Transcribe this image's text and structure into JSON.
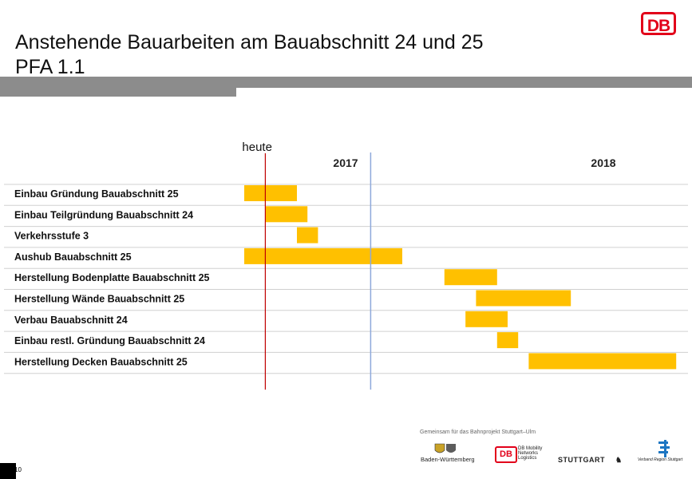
{
  "slide": {
    "title_line1": "Anstehende Bauarbeiten am Bauabschnitt 24 und 25",
    "title_line2": "PFA 1.1",
    "logo_text": "DB",
    "page_number": "10"
  },
  "footer": {
    "caption": "Gemeinsam für das Bahnprojekt Stuttgart–Ulm",
    "logos": [
      {
        "name": "baden-wuerttemberg-logo",
        "text": "Baden-Württemberg"
      },
      {
        "name": "db-mobility-logo",
        "text": "DB Mobility Networks Logistics"
      },
      {
        "name": "stuttgart-logo",
        "text": "STUTTGART"
      },
      {
        "name": "verband-region-stuttgart-logo",
        "text": "Verband Region Stuttgart"
      }
    ]
  },
  "chart_data": {
    "type": "gantt",
    "today_label": "heute",
    "period_labels": [
      "2017",
      "2018"
    ],
    "timeline_units": "months since Jan 2017",
    "timeline_range": [
      0,
      24
    ],
    "today_position": 2,
    "period_divider_position": 12,
    "tasks": [
      {
        "label": "Einbau Gründung Bauabschnitt 25",
        "start": 0,
        "end": 5
      },
      {
        "label": "Einbau Teilgründung Bauabschnitt 24",
        "start": 2,
        "end": 6
      },
      {
        "label": "Verkehrsstufe 3",
        "start": 5,
        "end": 7
      },
      {
        "label": "Aushub Bauabschnitt 25",
        "start": 0,
        "end": 15
      },
      {
        "label": "Herstellung Bodenplatte Bauabschnitt 25",
        "start": 19,
        "end": 24
      },
      {
        "label": "Herstellung  Wände Bauabschnitt 25",
        "start": 22,
        "end": 31
      },
      {
        "label": "Verbau Bauabschnitt 24",
        "start": 21,
        "end": 25
      },
      {
        "label": "Einbau restl. Gründung Bauabschnitt 24",
        "start": 24,
        "end": 26
      },
      {
        "label": "Herstellung Decken Bauabschnitt 25",
        "start": 27,
        "end": 41
      }
    ],
    "bar_color": "#FFC000",
    "today_line_color": "#C00000",
    "divider_color": "#8EA9DB"
  }
}
